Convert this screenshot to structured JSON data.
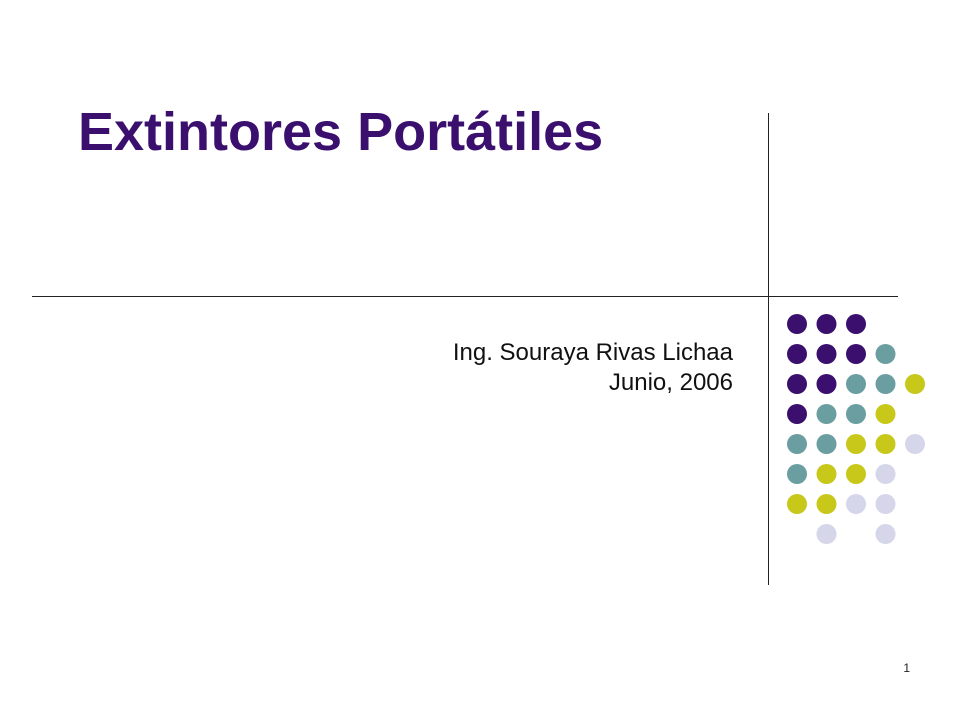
{
  "slide": {
    "title": "Extintores Portátiles",
    "author": "Ing. Souraya Rivas Lichaa",
    "date": "Junio, 2006",
    "page_number": "1"
  },
  "colors": {
    "title": "#3a0f6e",
    "purple": "#3a0f6e",
    "teal": "#6a9ea0",
    "olive": "#c8c81a",
    "lavender": "#d6d6ea"
  },
  "dot_pattern": {
    "rows": [
      [
        "purple",
        "purple",
        "purple",
        null,
        null
      ],
      [
        "purple",
        "purple",
        "purple",
        "teal",
        null
      ],
      [
        "purple",
        "purple",
        "teal",
        "teal",
        "olive"
      ],
      [
        "purple",
        "teal",
        "teal",
        "olive",
        null
      ],
      [
        "teal",
        "teal",
        "olive",
        "olive",
        "lavender"
      ],
      [
        "teal",
        "olive",
        "olive",
        "lavender",
        null
      ],
      [
        "olive",
        "olive",
        "lavender",
        "lavender",
        null
      ],
      [
        null,
        "lavender",
        null,
        "lavender",
        null
      ]
    ]
  }
}
